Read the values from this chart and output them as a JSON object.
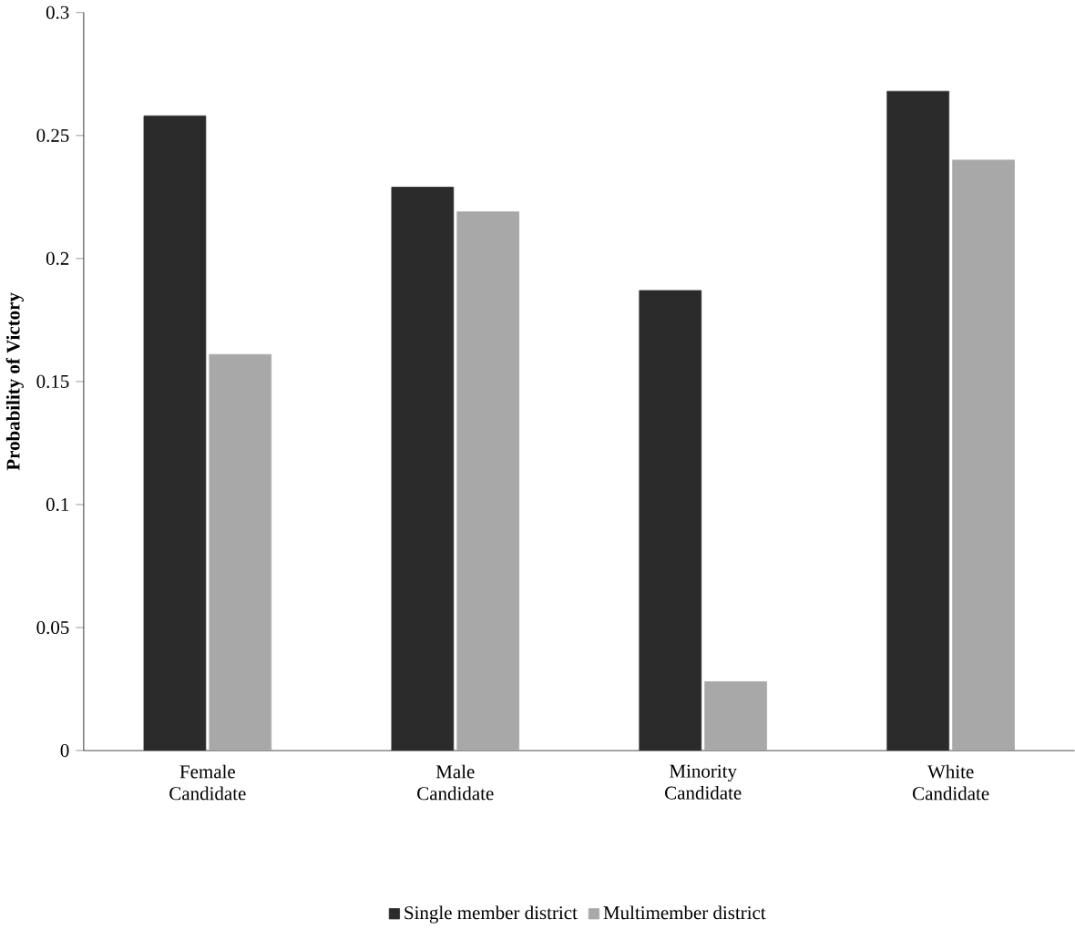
{
  "chart_data": {
    "type": "bar",
    "ylabel": "Probability  of Victory",
    "categories": [
      "Female Candidate",
      "Male Candidate",
      "Minority Candidate",
      "White Candidate"
    ],
    "series": [
      {
        "name": "Single member district",
        "color": "#2b2b2b",
        "values": [
          0.258,
          0.229,
          0.187,
          0.268
        ]
      },
      {
        "name": "Multimember district",
        "color": "#a8a8a8",
        "values": [
          0.161,
          0.219,
          0.028,
          0.24
        ]
      }
    ],
    "ylim": [
      0,
      0.3
    ],
    "yticks": [
      0,
      0.05,
      0.1,
      0.15,
      0.2,
      0.25,
      0.3
    ],
    "legend": "bottom"
  }
}
